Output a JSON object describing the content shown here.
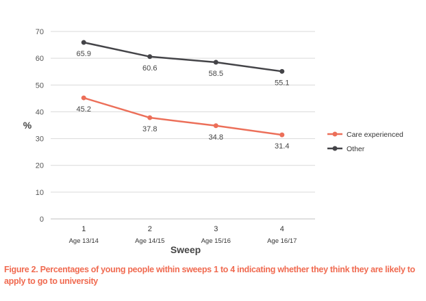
{
  "colors": {
    "care": "#ec6f59",
    "other": "#444448",
    "caption": "#f06a50"
  },
  "caption": "Figure 2. Percentages of young people within sweeps 1 to 4 indicating whether they think they are likely to apply to go to university",
  "chart_data": {
    "type": "line",
    "x": [
      "1",
      "2",
      "3",
      "4"
    ],
    "x_sublabels": [
      "Age 13/14",
      "Age 14/15",
      "Age 15/16",
      "Age 16/17"
    ],
    "xlabel": "Sweep",
    "ylabel": "%",
    "ylim": [
      0,
      70
    ],
    "yticks": [
      0,
      10,
      20,
      30,
      40,
      50,
      60,
      70
    ],
    "grid": true,
    "legend_position": "right",
    "series": [
      {
        "name": "Care experienced",
        "values": [
          45.2,
          37.8,
          34.8,
          31.4
        ],
        "labels": [
          "45.2",
          "37.8",
          "34.8",
          "31.4"
        ]
      },
      {
        "name": "Other",
        "values": [
          65.9,
          60.6,
          58.5,
          55.1
        ],
        "labels": [
          "65.9",
          "60.6",
          "58.5",
          "55.1"
        ]
      }
    ]
  }
}
